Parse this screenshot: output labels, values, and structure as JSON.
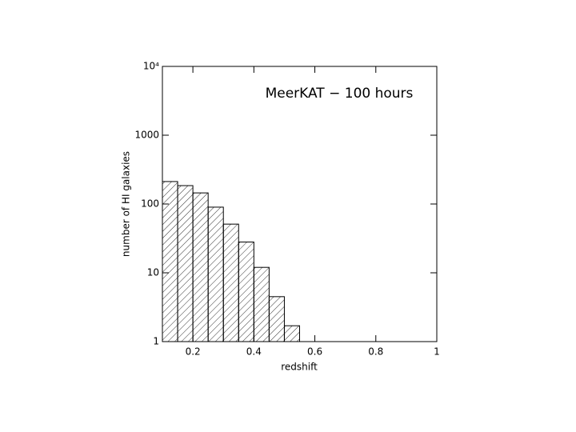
{
  "chart_data": {
    "type": "histogram",
    "annotation": "MeerKAT − 100 hours",
    "x_label": "redshift",
    "y_label": "number of HI galaxies",
    "bins": [
      0.1,
      0.15,
      0.2,
      0.25,
      0.3,
      0.35,
      0.4,
      0.45,
      0.5,
      0.55
    ],
    "values": [
      212,
      185,
      145,
      90,
      51,
      28,
      12,
      4.5,
      1.7
    ],
    "color": "#000000",
    "xlim": [
      0.1,
      1
    ],
    "xticks": [
      0.2,
      0.4,
      0.6,
      0.8,
      1
    ],
    "ylim": [
      1,
      10000
    ],
    "yticks": [
      1,
      10,
      100,
      1000,
      {
        "value": 10000,
        "label": "10⁴"
      }
    ],
    "ylog": true
  }
}
